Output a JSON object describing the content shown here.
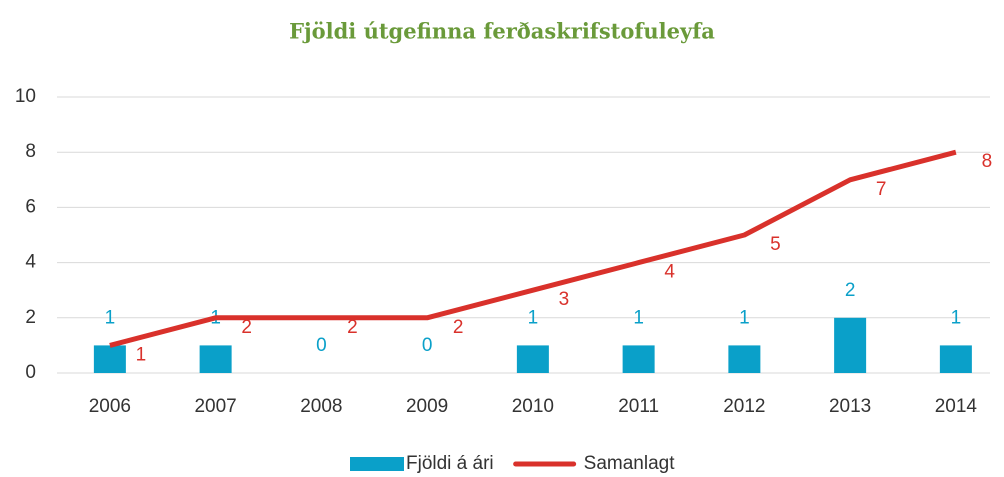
{
  "chart_data": {
    "type": "combo",
    "title": "Fjöldi útgefinna ferðaskrifstofuleyfa",
    "categories": [
      "2006",
      "2007",
      "2008",
      "2009",
      "2010",
      "2011",
      "2012",
      "2013",
      "2014"
    ],
    "series": [
      {
        "name": "Fjöldi á ári",
        "type": "bar",
        "color": "#0aa0c9",
        "values": [
          1,
          1,
          0,
          0,
          1,
          1,
          1,
          2,
          1
        ]
      },
      {
        "name": "Samanlagt",
        "type": "line",
        "color": "#d9312b",
        "values": [
          1,
          2,
          2,
          2,
          3,
          4,
          5,
          7,
          8
        ]
      }
    ],
    "ylim": [
      0,
      10
    ],
    "yticks": [
      0,
      2,
      4,
      6,
      8,
      10
    ],
    "grid": true,
    "legend": "bottom"
  }
}
